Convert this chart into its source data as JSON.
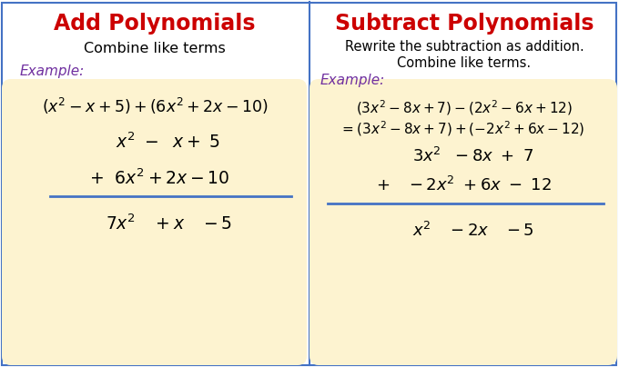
{
  "title_add": "Add Polynomials",
  "title_sub": "Subtract Polynomials",
  "title_color": "#cc0000",
  "subtitle_add": "Combine like terms",
  "subtitle_sub1": "Rewrite the subtraction as addition.",
  "subtitle_sub2": "Combine like terms.",
  "example_label": "Example:",
  "example_color": "#7030a0",
  "bg_color": "#ffffff",
  "box_color": "#fdf3d0",
  "border_color": "#4472c4",
  "text_color": "#000000",
  "divider_color": "#4472c4",
  "fig_bg": "#ffffff",
  "panel_divider_color": "#c8a000"
}
